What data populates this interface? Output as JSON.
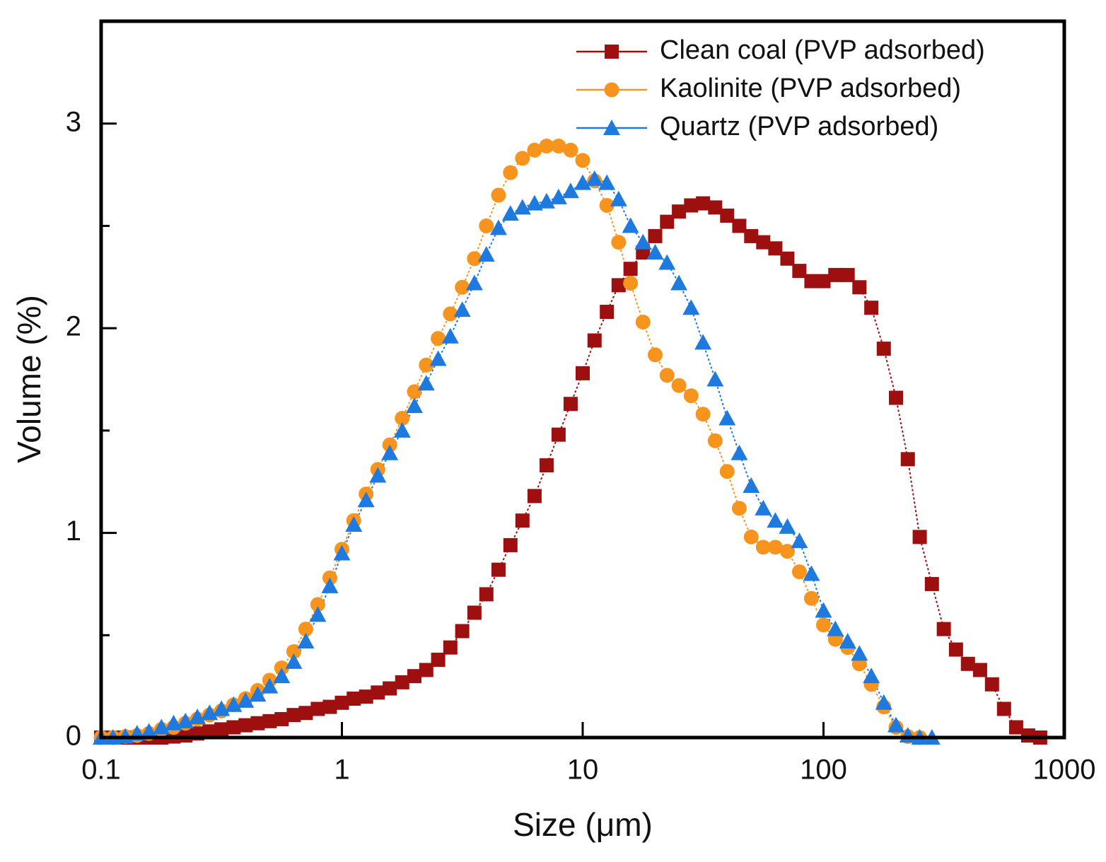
{
  "chart_data": {
    "type": "scatter",
    "xlabel": "Size (μm)",
    "ylabel": "Volume (%)",
    "xscale": "log",
    "xlim": [
      0.1,
      1000
    ],
    "xticks": [
      0.1,
      1,
      10,
      100,
      1000
    ],
    "ylim": [
      0,
      3.5
    ],
    "yticks": [
      0,
      1,
      2,
      3
    ],
    "yminor_ticks": [
      0.5,
      1.5,
      2.5
    ],
    "legend": "upper right",
    "x": [
      0.1,
      0.112,
      0.126,
      0.141,
      0.158,
      0.178,
      0.2,
      0.224,
      0.251,
      0.282,
      0.316,
      0.355,
      0.398,
      0.447,
      0.501,
      0.562,
      0.631,
      0.708,
      0.794,
      0.891,
      1,
      1.12,
      1.26,
      1.41,
      1.58,
      1.78,
      2,
      2.24,
      2.51,
      2.82,
      3.16,
      3.55,
      3.98,
      4.47,
      5.01,
      5.62,
      6.31,
      7.08,
      7.94,
      8.91,
      10,
      11.2,
      12.6,
      14.1,
      15.8,
      17.8,
      20,
      22.4,
      25.1,
      28.2,
      31.6,
      35.5,
      39.8,
      44.7,
      50.1,
      56.2,
      63.1,
      70.8,
      79.4,
      89.1,
      100,
      112,
      126,
      141,
      158,
      178,
      200,
      224,
      251,
      282,
      316,
      355,
      398,
      447,
      501,
      562,
      631,
      708,
      794
    ],
    "series": [
      {
        "name": "Clean coal (PVP adsorbed)",
        "color": "#9e0f0f",
        "marker": "square",
        "values": [
          0,
          0,
          0,
          0,
          0,
          0,
          0.005,
          0.01,
          0.02,
          0.03,
          0.04,
          0.05,
          0.06,
          0.07,
          0.08,
          0.09,
          0.11,
          0.12,
          0.14,
          0.15,
          0.17,
          0.19,
          0.2,
          0.22,
          0.24,
          0.27,
          0.3,
          0.33,
          0.38,
          0.44,
          0.52,
          0.61,
          0.7,
          0.82,
          0.94,
          1.06,
          1.18,
          1.33,
          1.48,
          1.63,
          1.78,
          1.94,
          2.08,
          2.21,
          2.29,
          2.37,
          2.45,
          2.52,
          2.57,
          2.6,
          2.61,
          2.59,
          2.55,
          2.5,
          2.45,
          2.42,
          2.39,
          2.34,
          2.28,
          2.23,
          2.23,
          2.26,
          2.26,
          2.2,
          2.1,
          1.9,
          1.66,
          1.36,
          0.98,
          0.75,
          0.53,
          0.43,
          0.36,
          0.33,
          0.26,
          0.14,
          0.05,
          0.01,
          0
        ]
      },
      {
        "name": "Kaolinite (PVP adsorbed)",
        "color": "#f7941d",
        "marker": "circle",
        "values": [
          0,
          0,
          0.005,
          0.01,
          0.02,
          0.04,
          0.05,
          0.07,
          0.09,
          0.11,
          0.13,
          0.16,
          0.19,
          0.23,
          0.28,
          0.34,
          0.42,
          0.53,
          0.65,
          0.78,
          0.92,
          1.06,
          1.19,
          1.31,
          1.43,
          1.56,
          1.69,
          1.82,
          1.95,
          2.07,
          2.2,
          2.34,
          2.5,
          2.65,
          2.76,
          2.83,
          2.87,
          2.89,
          2.89,
          2.87,
          2.82,
          2.72,
          2.6,
          2.42,
          2.22,
          2.03,
          1.87,
          1.77,
          1.72,
          1.67,
          1.58,
          1.45,
          1.3,
          1.12,
          0.98,
          0.93,
          0.93,
          0.91,
          0.81,
          0.68,
          0.55,
          0.48,
          0.44,
          0.36,
          0.26,
          0.15,
          0.05,
          0.005,
          0,
          null,
          null,
          null,
          null,
          null,
          null,
          null,
          null,
          null,
          null
        ]
      },
      {
        "name": "Quartz (PVP adsorbed)",
        "color": "#1f7ae0",
        "marker": "triangle",
        "values": [
          0,
          0,
          0.005,
          0.02,
          0.03,
          0.05,
          0.07,
          0.08,
          0.1,
          0.12,
          0.14,
          0.16,
          0.18,
          0.21,
          0.25,
          0.3,
          0.37,
          0.47,
          0.6,
          0.74,
          0.9,
          1.04,
          1.16,
          1.28,
          1.39,
          1.5,
          1.62,
          1.73,
          1.85,
          1.96,
          2.09,
          2.22,
          2.36,
          2.49,
          2.56,
          2.59,
          2.61,
          2.62,
          2.64,
          2.67,
          2.71,
          2.73,
          2.71,
          2.63,
          2.5,
          2.42,
          2.37,
          2.32,
          2.22,
          2.1,
          1.93,
          1.75,
          1.56,
          1.39,
          1.23,
          1.12,
          1.06,
          1.03,
          0.96,
          0.8,
          0.62,
          0.53,
          0.47,
          0.41,
          0.3,
          0.17,
          0.06,
          0.01,
          0,
          0,
          null,
          null,
          null,
          null,
          null,
          null,
          null,
          null,
          null
        ]
      }
    ]
  }
}
